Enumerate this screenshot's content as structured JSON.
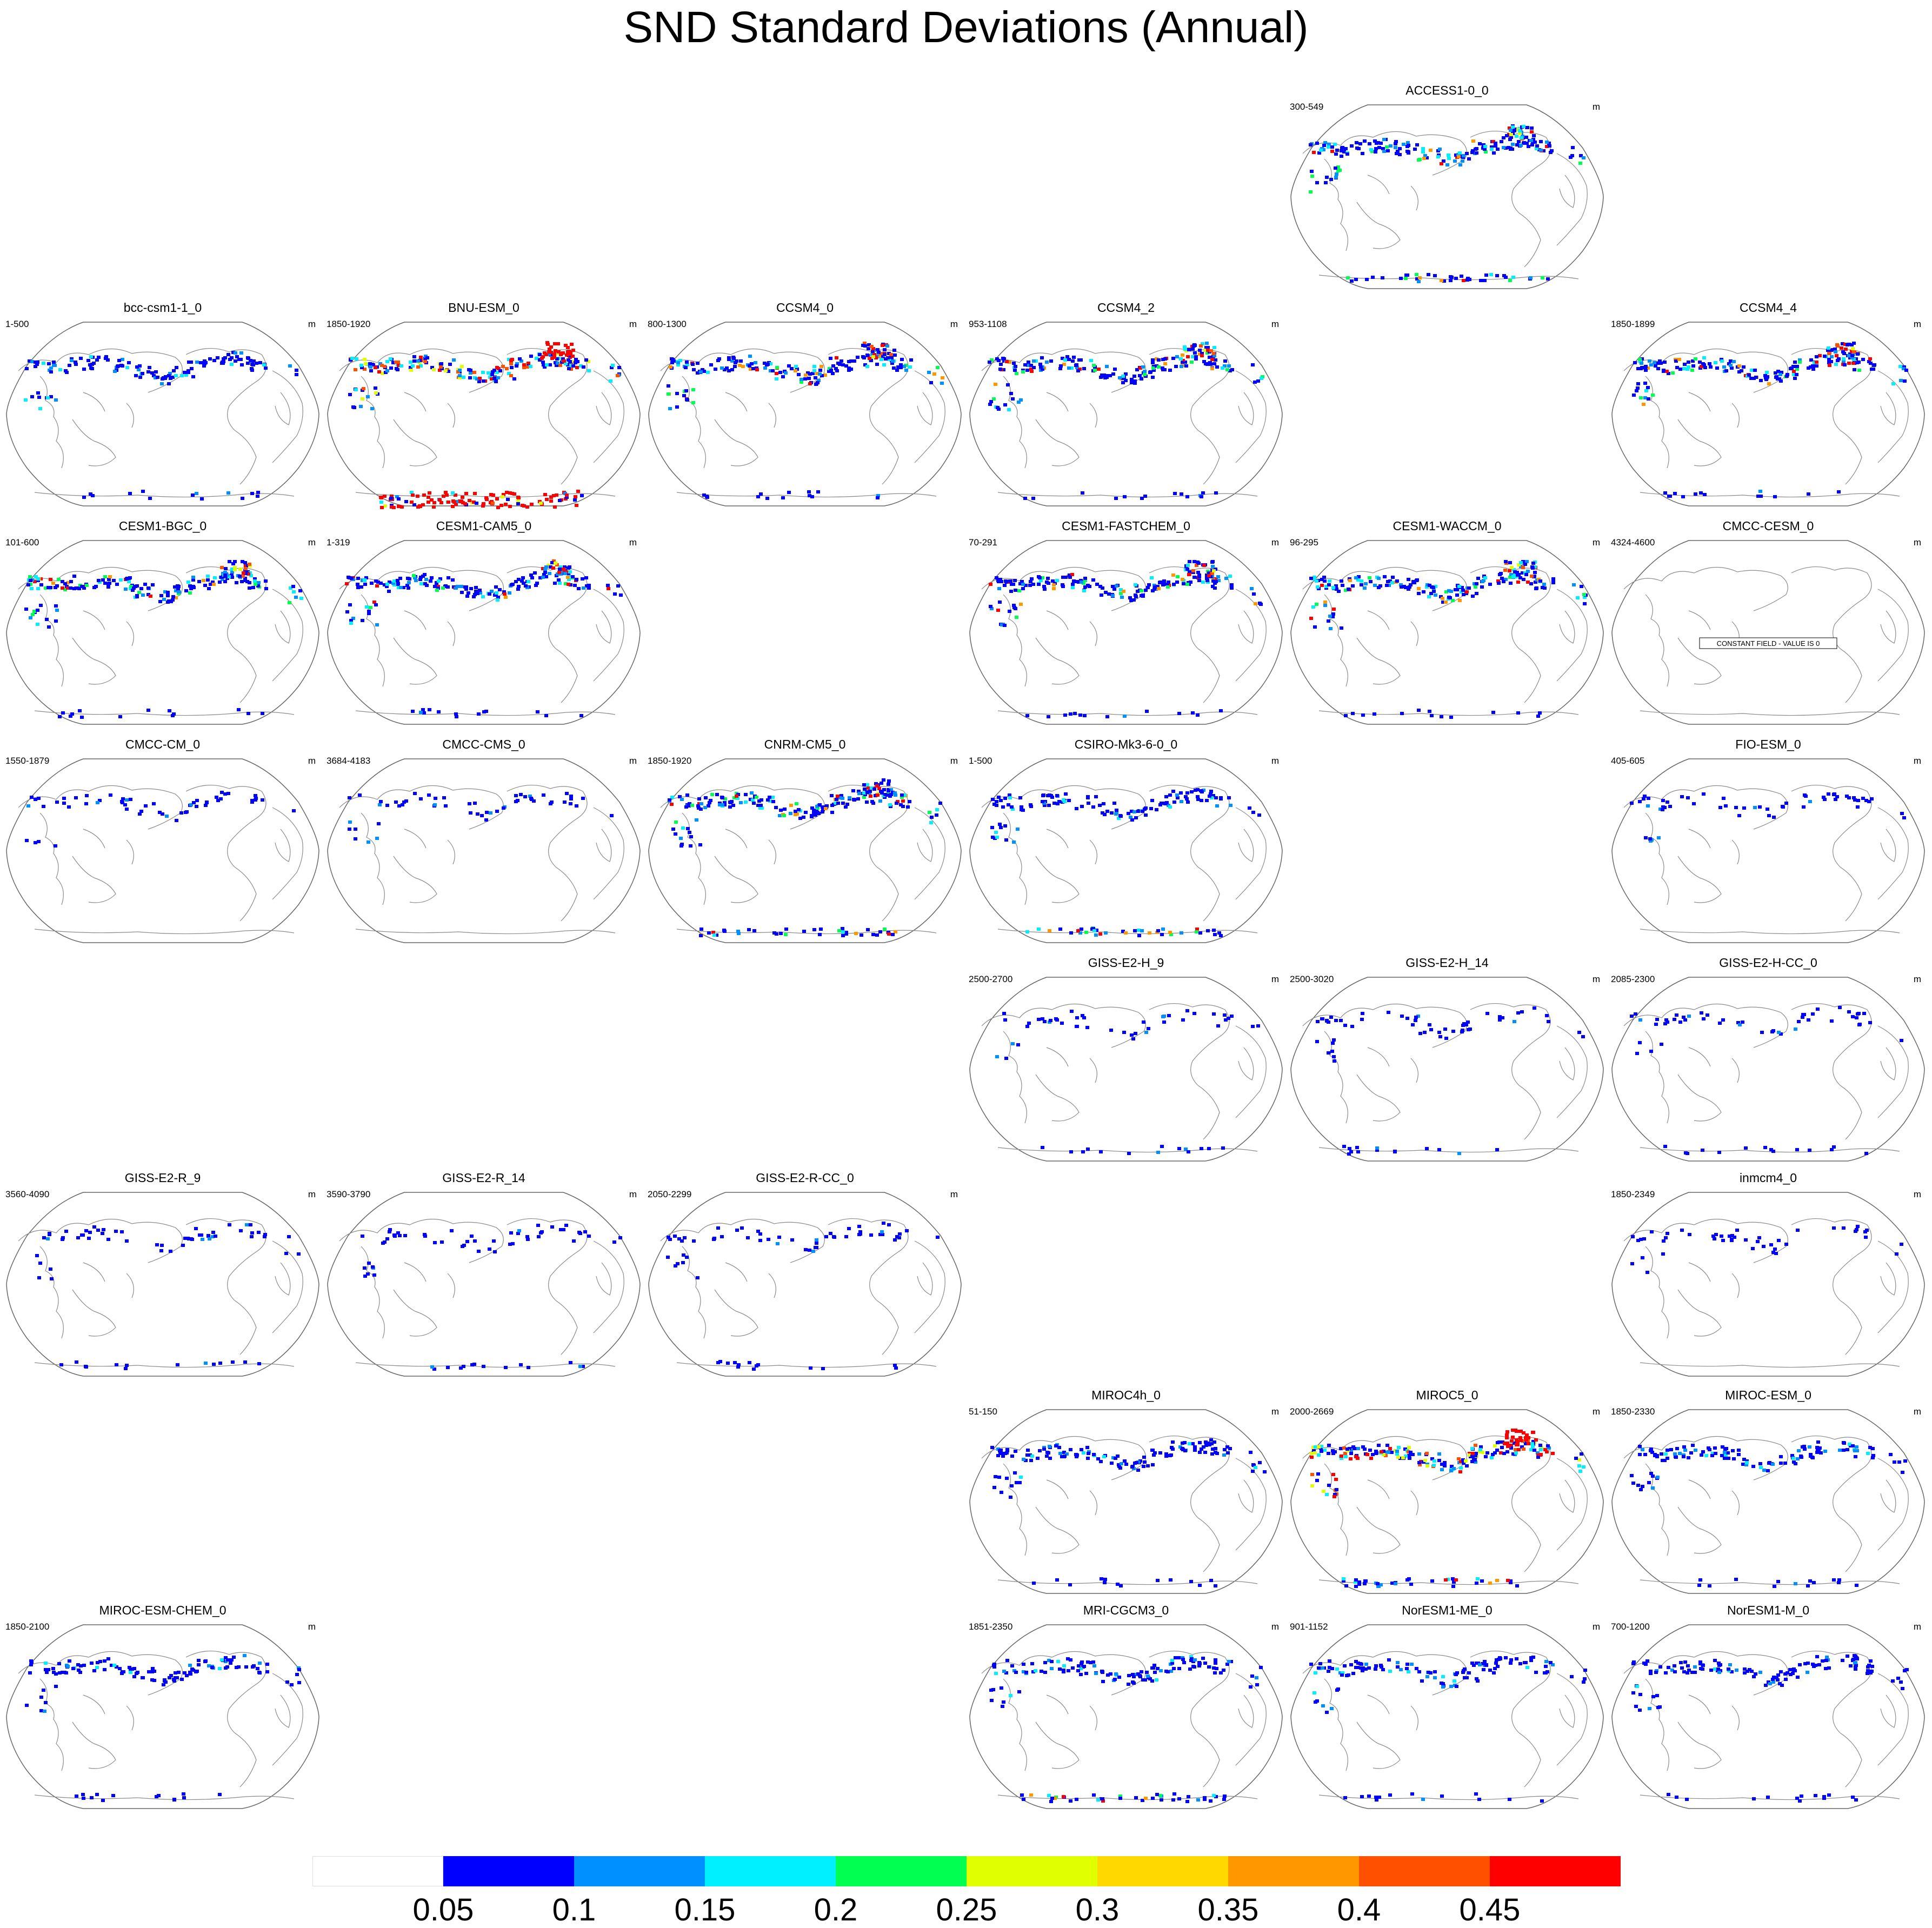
{
  "title": "SND Standard Deviations (Annual)",
  "unit": "m",
  "constant_field_text": "CONSTANT FIELD - VALUE IS 0",
  "colorbar": {
    "labels": [
      "0.05",
      "0.1",
      "0.15",
      "0.2",
      "0.25",
      "0.3",
      "0.35",
      "0.4",
      "0.45"
    ],
    "colors": [
      "#ffffff",
      "#0000ff",
      "#0090ff",
      "#00f0ff",
      "#00ff50",
      "#e0ff00",
      "#ffd800",
      "#ff9800",
      "#ff5000",
      "#ff0000"
    ]
  },
  "panels": [
    {
      "name": "ACCESS1-0_0",
      "years": "300-549",
      "row": 0,
      "col": 4,
      "level": 2,
      "antarctic": 2,
      "constant": false
    },
    {
      "name": "bcc-csm1-1_0",
      "years": "1-500",
      "row": 1,
      "col": 0,
      "level": 1,
      "antarctic": 1,
      "constant": false
    },
    {
      "name": "BNU-ESM_0",
      "years": "1850-1920",
      "row": 1,
      "col": 1,
      "level": 3,
      "antarctic": 3,
      "constant": false
    },
    {
      "name": "CCSM4_0",
      "years": "800-1300",
      "row": 1,
      "col": 2,
      "level": 2,
      "antarctic": 1,
      "constant": false
    },
    {
      "name": "CCSM4_2",
      "years": "953-1108",
      "row": 1,
      "col": 3,
      "level": 2,
      "antarctic": 1,
      "constant": false
    },
    {
      "name": "CCSM4_4",
      "years": "1850-1899",
      "row": 1,
      "col": 5,
      "level": 2,
      "antarctic": 1,
      "constant": false
    },
    {
      "name": "CESM1-BGC_0",
      "years": "101-600",
      "row": 2,
      "col": 0,
      "level": 2,
      "antarctic": 1,
      "constant": false
    },
    {
      "name": "CESM1-CAM5_0",
      "years": "1-319",
      "row": 2,
      "col": 1,
      "level": 2,
      "antarctic": 1,
      "constant": false
    },
    {
      "name": "CESM1-FASTCHEM_0",
      "years": "70-291",
      "row": 2,
      "col": 3,
      "level": 2,
      "antarctic": 1,
      "constant": false
    },
    {
      "name": "CESM1-WACCM_0",
      "years": "96-295",
      "row": 2,
      "col": 4,
      "level": 2,
      "antarctic": 1,
      "constant": false
    },
    {
      "name": "CMCC-CESM_0",
      "years": "4324-4600",
      "row": 2,
      "col": 5,
      "level": 0,
      "antarctic": 0,
      "constant": true
    },
    {
      "name": "CMCC-CM_0",
      "years": "1550-1879",
      "row": 3,
      "col": 0,
      "level": 0,
      "antarctic": 0,
      "constant": false
    },
    {
      "name": "CMCC-CMS_0",
      "years": "3684-4183",
      "row": 3,
      "col": 1,
      "level": 0,
      "antarctic": 0,
      "constant": false
    },
    {
      "name": "CNRM-CM5_0",
      "years": "1850-1920",
      "row": 3,
      "col": 2,
      "level": 2,
      "antarctic": 2,
      "constant": false
    },
    {
      "name": "CSIRO-Mk3-6-0_0",
      "years": "1-500",
      "row": 3,
      "col": 3,
      "level": 1,
      "antarctic": 2,
      "constant": false
    },
    {
      "name": "FIO-ESM_0",
      "years": "405-605",
      "row": 3,
      "col": 5,
      "level": 0,
      "antarctic": 0,
      "constant": false
    },
    {
      "name": "GISS-E2-H_9",
      "years": "2500-2700",
      "row": 4,
      "col": 3,
      "level": 0,
      "antarctic": 1,
      "constant": false
    },
    {
      "name": "GISS-E2-H_14",
      "years": "2500-3020",
      "row": 4,
      "col": 4,
      "level": 0,
      "antarctic": 1,
      "constant": false
    },
    {
      "name": "GISS-E2-H-CC_0",
      "years": "2085-2300",
      "row": 4,
      "col": 5,
      "level": 0,
      "antarctic": 1,
      "constant": false
    },
    {
      "name": "GISS-E2-R_9",
      "years": "3560-4090",
      "row": 5,
      "col": 0,
      "level": 0,
      "antarctic": 1,
      "constant": false
    },
    {
      "name": "GISS-E2-R_14",
      "years": "3590-3790",
      "row": 5,
      "col": 1,
      "level": 0,
      "antarctic": 1,
      "constant": false
    },
    {
      "name": "GISS-E2-R-CC_0",
      "years": "2050-2299",
      "row": 5,
      "col": 2,
      "level": 0,
      "antarctic": 1,
      "constant": false
    },
    {
      "name": "inmcm4_0",
      "years": "1850-2349",
      "row": 5,
      "col": 5,
      "level": 0,
      "antarctic": 0,
      "constant": false
    },
    {
      "name": "MIROC4h_0",
      "years": "51-150",
      "row": 6,
      "col": 3,
      "level": 1,
      "antarctic": 1,
      "constant": false
    },
    {
      "name": "MIROC5_0",
      "years": "2000-2669",
      "row": 6,
      "col": 4,
      "level": 3,
      "antarctic": 2,
      "constant": false
    },
    {
      "name": "MIROC-ESM_0",
      "years": "1850-2330",
      "row": 6,
      "col": 5,
      "level": 1,
      "antarctic": 1,
      "constant": false
    },
    {
      "name": "MIROC-ESM-CHEM_0",
      "years": "1850-2100",
      "row": 7,
      "col": 0,
      "level": 1,
      "antarctic": 1,
      "constant": false
    },
    {
      "name": "MRI-CGCM3_0",
      "years": "1851-2350",
      "row": 7,
      "col": 3,
      "level": 1,
      "antarctic": 2,
      "constant": false
    },
    {
      "name": "NorESM1-ME_0",
      "years": "901-1152",
      "row": 7,
      "col": 4,
      "level": 1,
      "antarctic": 1,
      "constant": false
    },
    {
      "name": "NorESM1-M_0",
      "years": "700-1200",
      "row": 7,
      "col": 5,
      "level": 1,
      "antarctic": 1,
      "constant": false
    }
  ]
}
